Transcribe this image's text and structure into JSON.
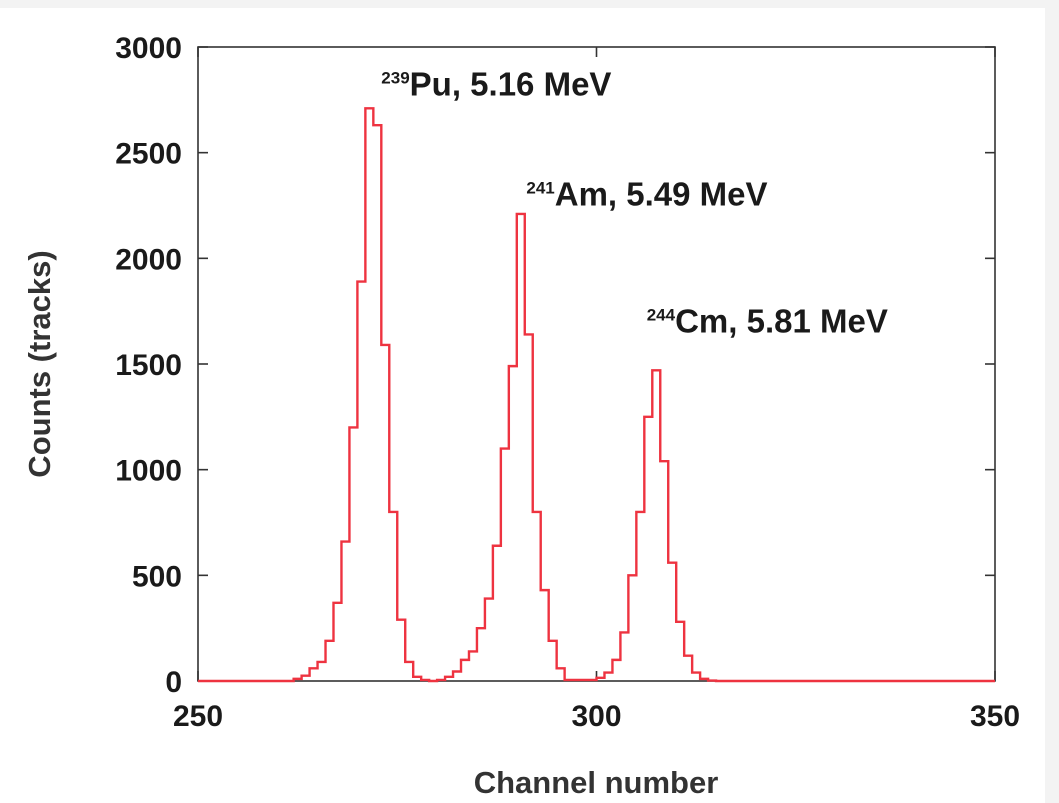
{
  "chart_data": {
    "type": "line",
    "xlabel": "Channel number",
    "ylabel": "Counts (tracks)",
    "xlim": [
      250,
      350
    ],
    "ylim": [
      0,
      3000
    ],
    "x_ticks": [
      "250",
      "300",
      "350"
    ],
    "y_ticks": [
      "0",
      "500",
      "1000",
      "1500",
      "2000",
      "2500",
      "3000"
    ],
    "grid": false,
    "line_color": "#ee3340",
    "bin_width": 1,
    "series": [
      {
        "x": [
          250,
          251,
          252,
          253,
          254,
          255,
          256,
          257,
          258,
          259,
          260,
          261,
          262,
          263,
          264,
          265,
          266,
          267,
          268,
          269,
          270,
          271,
          272,
          273,
          274,
          275,
          276,
          277,
          278,
          279,
          280,
          281,
          282,
          283,
          284,
          285,
          286,
          287,
          288,
          289,
          290,
          291,
          292,
          293,
          294,
          295,
          296,
          297,
          298,
          299,
          300,
          301,
          302,
          303,
          304,
          305,
          306,
          307,
          308,
          309,
          310,
          311,
          312,
          313,
          314,
          315,
          316,
          317,
          318,
          319,
          320,
          321,
          322,
          323,
          324,
          325,
          326,
          327,
          328,
          329,
          330,
          331,
          332,
          333,
          334,
          335,
          336,
          337,
          338,
          339,
          340,
          341,
          342,
          343,
          344,
          345,
          346,
          347,
          348,
          349
        ],
        "values": [
          0,
          0,
          0,
          0,
          0,
          0,
          0,
          0,
          0,
          0,
          0,
          0,
          10,
          25,
          60,
          90,
          190,
          370,
          660,
          1200,
          1890,
          2710,
          2630,
          1590,
          800,
          290,
          90,
          20,
          5,
          0,
          5,
          20,
          45,
          100,
          140,
          250,
          390,
          640,
          1100,
          1490,
          2210,
          1640,
          800,
          430,
          190,
          60,
          5,
          5,
          5,
          5,
          15,
          40,
          100,
          230,
          500,
          800,
          1250,
          1470,
          1040,
          560,
          280,
          120,
          40,
          10,
          2,
          0,
          0,
          0,
          0,
          0,
          0,
          0,
          0,
          0,
          0,
          0,
          0,
          0,
          0,
          0,
          0,
          0,
          0,
          0,
          0,
          0,
          0,
          0,
          0,
          0,
          0,
          0,
          0,
          0,
          0,
          0,
          0,
          0,
          0,
          0
        ]
      }
    ],
    "annotations": [
      {
        "sup": "239",
        "text": "Pu, 5.16 MeV",
        "x": 273,
        "y": 2770
      },
      {
        "sup": "241",
        "text": "Am, 5.49 MeV",
        "x": 291.2,
        "y": 2250
      },
      {
        "sup": "244",
        "text": "Cm, 5.81 MeV",
        "x": 306.3,
        "y": 1650
      }
    ]
  }
}
